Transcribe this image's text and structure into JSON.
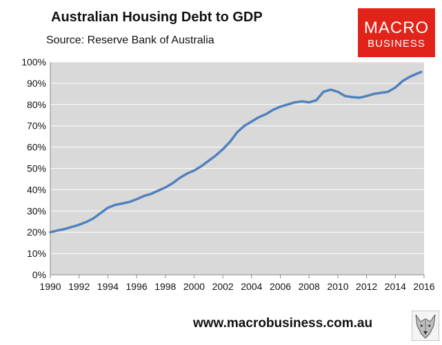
{
  "header": {
    "title": "Australian Housing Debt to GDP",
    "subtitle": "Source: Reserve Bank of Australia"
  },
  "logo": {
    "line1": "MACRO",
    "line2": "BUSINESS",
    "color": "#e2231a"
  },
  "footer": {
    "url": "www.macrobusiness.com.au",
    "icon": "wolf-logo-icon"
  },
  "chart_data": {
    "type": "line",
    "title": "Australian Housing Debt to GDP",
    "subtitle": "Source: Reserve Bank of Australia",
    "xlabel": "",
    "ylabel": "",
    "xlim": [
      1990,
      2016
    ],
    "ylim": [
      0,
      100
    ],
    "x_ticks": [
      1990,
      1992,
      1994,
      1996,
      1998,
      2000,
      2002,
      2004,
      2006,
      2008,
      2010,
      2012,
      2014,
      2016
    ],
    "y_ticks": [
      "0%",
      "10%",
      "20%",
      "30%",
      "40%",
      "50%",
      "60%",
      "70%",
      "80%",
      "90%",
      "100%"
    ],
    "grid": "horizontal",
    "plot_background": "#d9d9d9",
    "series": [
      {
        "color": "#4f81bd",
        "points": [
          [
            1990.0,
            20.0
          ],
          [
            1990.5,
            20.8
          ],
          [
            1991.0,
            21.5
          ],
          [
            1991.5,
            22.5
          ],
          [
            1992.0,
            23.5
          ],
          [
            1992.5,
            24.8
          ],
          [
            1993.0,
            26.5
          ],
          [
            1993.5,
            29.0
          ],
          [
            1994.0,
            31.5
          ],
          [
            1994.5,
            32.8
          ],
          [
            1995.0,
            33.5
          ],
          [
            1995.5,
            34.2
          ],
          [
            1996.0,
            35.5
          ],
          [
            1996.5,
            37.0
          ],
          [
            1997.0,
            38.0
          ],
          [
            1997.5,
            39.5
          ],
          [
            1998.0,
            41.0
          ],
          [
            1998.5,
            43.0
          ],
          [
            1999.0,
            45.5
          ],
          [
            1999.5,
            47.5
          ],
          [
            2000.0,
            49.0
          ],
          [
            2000.5,
            51.0
          ],
          [
            2001.0,
            53.5
          ],
          [
            2001.5,
            56.0
          ],
          [
            2002.0,
            59.0
          ],
          [
            2002.5,
            62.5
          ],
          [
            2003.0,
            67.0
          ],
          [
            2003.5,
            70.0
          ],
          [
            2004.0,
            72.0
          ],
          [
            2004.5,
            74.0
          ],
          [
            2005.0,
            75.5
          ],
          [
            2005.5,
            77.5
          ],
          [
            2006.0,
            79.0
          ],
          [
            2006.5,
            80.0
          ],
          [
            2007.0,
            81.0
          ],
          [
            2007.5,
            81.5
          ],
          [
            2008.0,
            81.0
          ],
          [
            2008.5,
            82.0
          ],
          [
            2009.0,
            86.0
          ],
          [
            2009.5,
            87.0
          ],
          [
            2010.0,
            86.0
          ],
          [
            2010.5,
            84.0
          ],
          [
            2011.0,
            83.5
          ],
          [
            2011.5,
            83.2
          ],
          [
            2012.0,
            84.0
          ],
          [
            2012.5,
            85.0
          ],
          [
            2013.0,
            85.5
          ],
          [
            2013.5,
            86.0
          ],
          [
            2014.0,
            88.0
          ],
          [
            2014.5,
            91.0
          ],
          [
            2015.0,
            93.0
          ],
          [
            2015.5,
            94.5
          ],
          [
            2015.8,
            95.3
          ]
        ]
      }
    ]
  }
}
